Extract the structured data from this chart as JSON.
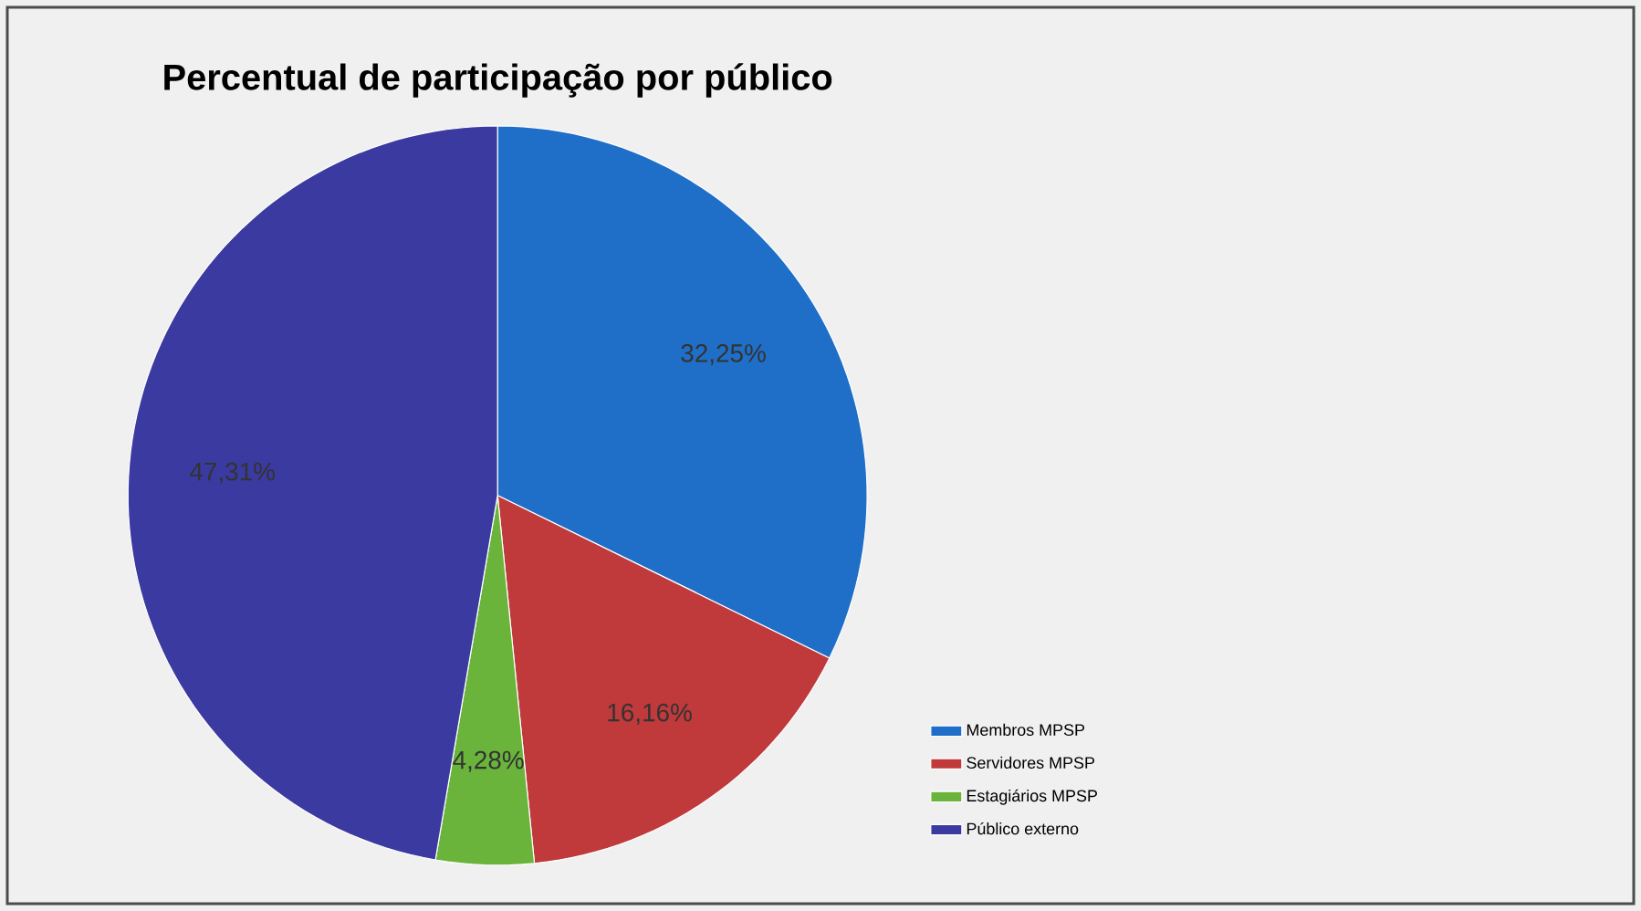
{
  "chart_data": {
    "type": "pie",
    "title": "Percentual de participação por público",
    "categories": [
      "Membros MPSP",
      "Servidores MPSP",
      "Estagiários MPSP",
      "Público externo"
    ],
    "values": [
      32.25,
      16.16,
      4.28,
      47.31
    ],
    "colors": [
      "#1f6fc8",
      "#c0393b",
      "#6ab43c",
      "#3a3aa0"
    ],
    "value_labels": [
      "32,25%",
      "16,16%",
      "4,28%",
      "47,31%"
    ],
    "legend": "right"
  }
}
